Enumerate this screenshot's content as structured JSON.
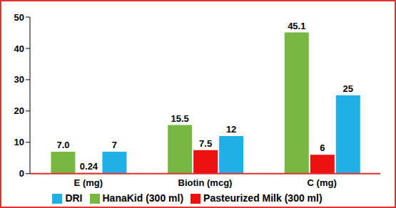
{
  "chart_data": {
    "type": "bar",
    "categories": [
      "E (mg)",
      "Biotin (mcg)",
      "C (mg)"
    ],
    "series": [
      {
        "name": "HanaKid (300 ml)",
        "color": "#77b843",
        "values": [
          7,
          15.5,
          45.1
        ],
        "value_labels": [
          "7.0",
          "15.5",
          "45.1"
        ]
      },
      {
        "name": "Pasteurized Milk (300 ml)",
        "color": "#ee1111",
        "values": [
          0.24,
          7.5,
          6
        ]
      },
      {
        "name": "DRI",
        "color": "#1fb0e6",
        "values": [
          7,
          12,
          25
        ]
      }
    ],
    "ylim": [
      0,
      50
    ],
    "yticks": [
      0,
      10,
      20,
      30,
      40,
      50
    ],
    "grid": false,
    "legend": "bottom",
    "data_labels": true
  }
}
